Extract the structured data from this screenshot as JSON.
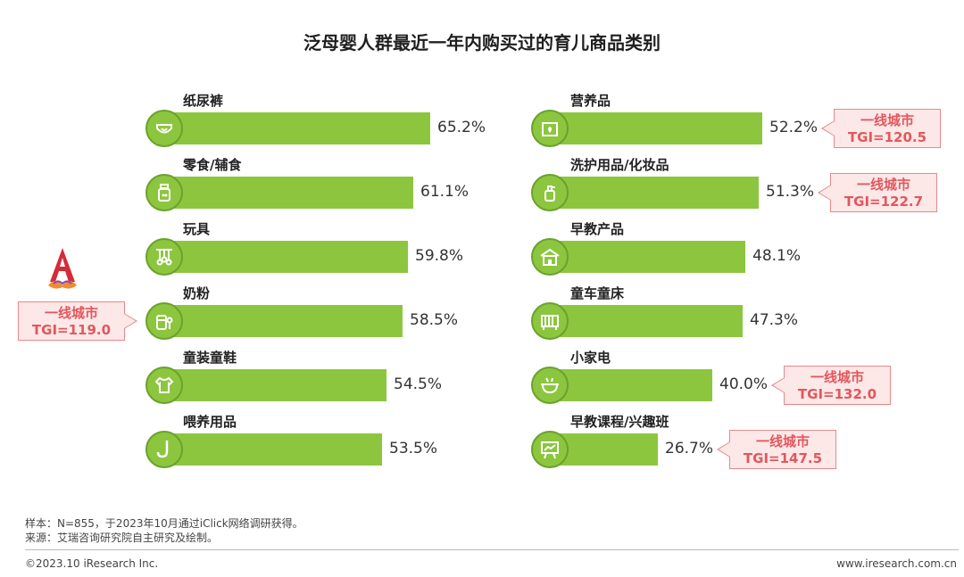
{
  "chart_data": {
    "type": "bar",
    "orientation": "horizontal",
    "title": "泛母婴人群最近一年内购买过的育儿商品类别",
    "unit": "%",
    "xlim": [
      0,
      100
    ],
    "left_column": [
      {
        "category": "纸尿裤",
        "value": 65.2,
        "label": "65.2%",
        "icon": "diaper-icon"
      },
      {
        "category": "零食/辅食",
        "value": 61.1,
        "label": "61.1%",
        "icon": "baby-food-jar-icon"
      },
      {
        "category": "玩具",
        "value": 59.8,
        "label": "59.8%",
        "icon": "crib-mobile-icon"
      },
      {
        "category": "奶粉",
        "value": 58.5,
        "label": "58.5%",
        "icon": "formula-can-icon",
        "callout": {
          "line1": "一线城市",
          "line2": "TGI=119.0"
        }
      },
      {
        "category": "童装童鞋",
        "value": 54.5,
        "label": "54.5%",
        "icon": "baby-clothes-icon"
      },
      {
        "category": "喂养用品",
        "value": 53.5,
        "label": "53.5%",
        "icon": "feeding-spoon-icon"
      }
    ],
    "right_column": [
      {
        "category": "营养品",
        "value": 52.2,
        "label": "52.2%",
        "icon": "supplement-box-icon",
        "callout": {
          "line1": "一线城市",
          "line2": "TGI=120.5"
        }
      },
      {
        "category": "洗护用品/化妆品",
        "value": 51.3,
        "label": "51.3%",
        "icon": "lotion-bottle-icon",
        "callout": {
          "line1": "一线城市",
          "line2": "TGI=122.7"
        }
      },
      {
        "category": "早教产品",
        "value": 48.1,
        "label": "48.1%",
        "icon": "school-building-icon"
      },
      {
        "category": "童车童床",
        "value": 47.3,
        "label": "47.3%",
        "icon": "baby-crib-icon"
      },
      {
        "category": "小家电",
        "value": 40.0,
        "label": "40.0%",
        "icon": "small-appliance-icon",
        "callout": {
          "line1": "一线城市",
          "line2": "TGI=132.0"
        }
      },
      {
        "category": "早教课程/兴趣班",
        "value": 26.7,
        "label": "26.7%",
        "icon": "presentation-board-icon",
        "callout": {
          "line1": "一线城市",
          "line2": "TGI=147.5"
        }
      }
    ]
  },
  "footnotes": {
    "sample": "样本：N=855，于2023年10月通过iClick网络调研获得。",
    "source": "来源：艾瑞咨询研究院自主研究及绘制。"
  },
  "footer": {
    "copyright": "©2023.10 iResearch Inc.",
    "website": "www.iresearch.com.cn"
  },
  "colors": {
    "bar": "#8cc63f",
    "callout_text": "#e2575c",
    "callout_bg": "#fde8e8",
    "callout_border": "#e8878a"
  }
}
